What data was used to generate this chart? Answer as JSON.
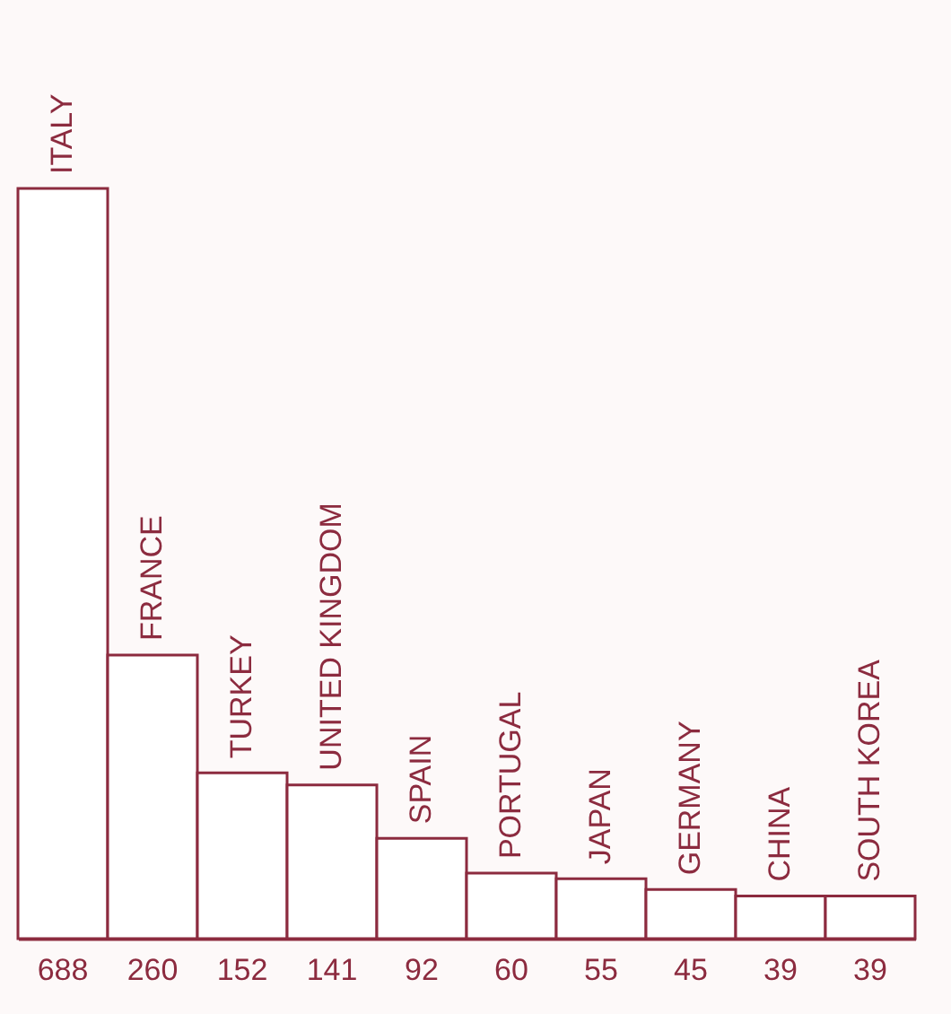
{
  "chart_data": {
    "type": "bar",
    "categories": [
      "ITALY",
      "FRANCE",
      "TURKEY",
      "UNITED KINGDOM",
      "SPAIN",
      "PORTUGAL",
      "JAPAN",
      "GERMANY",
      "CHINA",
      "SOUTH KOREA"
    ],
    "values": [
      688,
      260,
      152,
      141,
      92,
      60,
      55,
      45,
      39,
      39
    ],
    "color": "#8c2b3f",
    "data_labels": true
  }
}
